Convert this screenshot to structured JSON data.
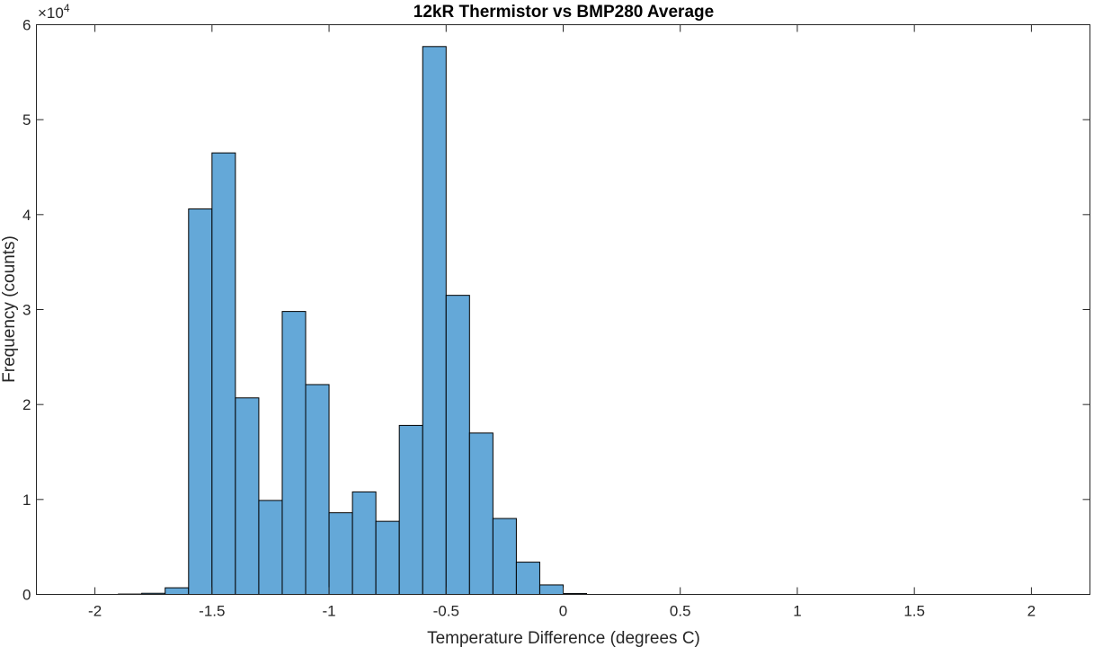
{
  "chart_data": {
    "type": "bar",
    "title": "12kR Thermistor vs BMP280 Average",
    "xlabel": "Temperature Difference (degrees C)",
    "ylabel": "Frequency (counts)",
    "y_exponent_label": "×10",
    "y_exponent_power": "4",
    "xlim": [
      -2.25,
      2.25
    ],
    "ylim": [
      0,
      60000
    ],
    "x_ticks": [
      -2,
      -1.5,
      -1,
      -0.5,
      0,
      0.5,
      1,
      1.5,
      2
    ],
    "x_tick_labels": [
      "-2",
      "-1.5",
      "-1",
      "-0.5",
      "0",
      "0.5",
      "1",
      "1.5",
      "2"
    ],
    "y_ticks": [
      0,
      10000,
      20000,
      30000,
      40000,
      50000,
      60000
    ],
    "y_tick_labels": [
      "0",
      "1",
      "2",
      "3",
      "4",
      "5",
      "6"
    ],
    "bin_width": 0.1,
    "bin_edges_start": -1.9,
    "values": [
      40,
      120,
      700,
      40600,
      46500,
      20700,
      9900,
      29800,
      22100,
      8600,
      10800,
      7700,
      17800,
      57700,
      31500,
      17000,
      8000,
      3400,
      1000,
      100
    ],
    "bar_color": "#64a8d8",
    "bar_edge_color": "#000000",
    "grid": false,
    "box": true
  }
}
